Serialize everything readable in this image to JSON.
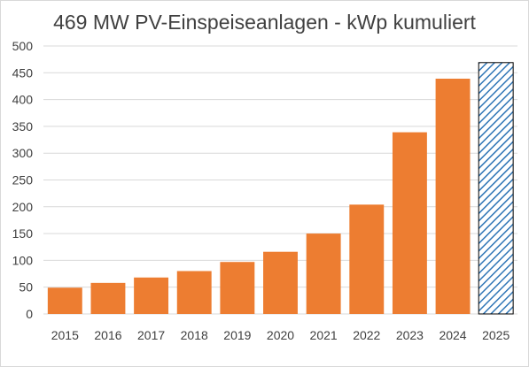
{
  "chart_data": {
    "type": "bar",
    "title": "469 MW PV-Einspeiseanlagen - kWp kumuliert",
    "xlabel": "",
    "ylabel": "",
    "categories": [
      "2015",
      "2016",
      "2017",
      "2018",
      "2019",
      "2020",
      "2021",
      "2022",
      "2023",
      "2024",
      "2025"
    ],
    "values": [
      49,
      58,
      68,
      80,
      97,
      116,
      150,
      204,
      339,
      439,
      469
    ],
    "ylim": [
      0,
      500
    ],
    "yticks": [
      "0",
      "50",
      "100",
      "150",
      "200",
      "250",
      "300",
      "350",
      "400",
      "450",
      "500"
    ],
    "grid": true,
    "legend": "none",
    "colors": {
      "bar": "#ed7d31",
      "projected_bar_stroke": "#2e75b6",
      "projected_bar_fill": "#ffffff",
      "projected_bar_border": "#000000",
      "grid": "#d9d9d9",
      "text": "#404040"
    },
    "projected_categories": [
      "2025"
    ]
  }
}
